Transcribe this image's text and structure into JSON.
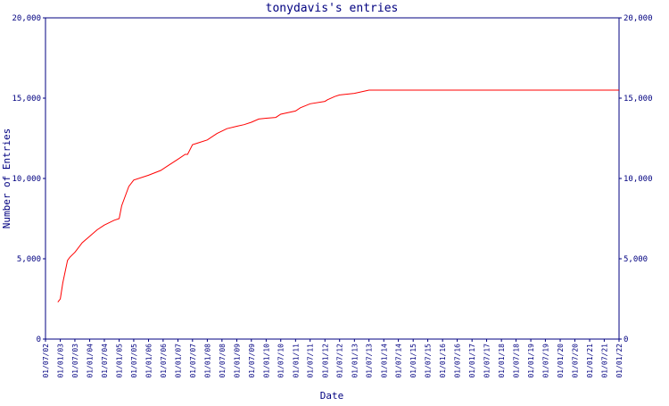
{
  "colors": {
    "axis": "#000080",
    "text": "#000080",
    "series": "#ff0000",
    "background": "#ffffff"
  },
  "chart_data": {
    "type": "line",
    "title": "tonydavis's entries",
    "xlabel": "Date",
    "ylabel": "Number of Entries",
    "ylim": [
      0,
      20000
    ],
    "yticks": [
      0,
      5000,
      10000,
      15000,
      20000
    ],
    "ytick_labels": [
      "0",
      "5,000",
      "10,000",
      "15,000",
      "20,000"
    ],
    "xlim": [
      "2002-07-01",
      "2022-01-01"
    ],
    "x_tick_dates": [
      "2002-07-01",
      "2003-01-01",
      "2003-07-01",
      "2004-01-01",
      "2004-07-01",
      "2005-01-01",
      "2005-07-01",
      "2006-01-01",
      "2006-07-01",
      "2007-01-01",
      "2007-07-01",
      "2008-01-01",
      "2008-07-01",
      "2009-01-01",
      "2009-07-01",
      "2010-01-01",
      "2010-07-01",
      "2011-01-01",
      "2011-07-01",
      "2012-01-01",
      "2012-07-01",
      "2013-01-01",
      "2013-07-01",
      "2014-01-01",
      "2014-07-01",
      "2015-01-01",
      "2015-07-01",
      "2016-01-01",
      "2016-07-01",
      "2017-01-01",
      "2017-07-01",
      "2018-01-01",
      "2018-07-01",
      "2019-01-01",
      "2019-07-01",
      "2020-01-01",
      "2020-07-01",
      "2021-01-01",
      "2021-07-01",
      "2022-01-01"
    ],
    "x_tick_labels": [
      "01/07/02",
      "01/01/03",
      "01/07/03",
      "01/01/04",
      "01/07/04",
      "01/01/05",
      "01/07/05",
      "01/01/06",
      "01/07/06",
      "01/01/07",
      "01/07/07",
      "01/01/08",
      "01/07/08",
      "01/01/09",
      "01/07/09",
      "01/01/10",
      "01/07/10",
      "01/01/11",
      "01/07/11",
      "01/01/12",
      "01/07/12",
      "01/01/13",
      "01/07/13",
      "01/01/14",
      "01/07/14",
      "01/01/15",
      "01/07/15",
      "01/01/16",
      "01/07/16",
      "01/01/17",
      "01/07/17",
      "01/01/18",
      "01/07/18",
      "01/01/19",
      "01/07/19",
      "01/01/20",
      "01/07/20",
      "01/01/21",
      "01/07/21",
      "01/01/22"
    ],
    "grid": false,
    "series": [
      {
        "x": [
          "2002-12-01",
          "2003-01-01",
          "2003-02-01",
          "2003-04-01",
          "2003-05-01",
          "2003-07-01",
          "2003-08-01",
          "2003-10-01",
          "2004-01-01",
          "2004-04-01",
          "2004-07-01",
          "2004-11-01",
          "2005-01-01",
          "2005-02-01",
          "2005-05-01",
          "2005-07-01",
          "2006-01-01",
          "2006-06-01",
          "2006-09-01",
          "2007-01-01",
          "2007-04-01",
          "2007-05-01",
          "2007-07-01",
          "2007-09-01",
          "2008-01-01",
          "2008-05-01",
          "2008-09-01",
          "2009-01-01",
          "2009-04-01",
          "2009-07-01",
          "2009-10-01",
          "2010-01-01",
          "2010-05-01",
          "2010-07-01",
          "2011-01-01",
          "2011-03-01",
          "2011-07-01",
          "2012-01-01",
          "2012-02-01",
          "2012-05-01",
          "2012-07-01",
          "2013-01-01",
          "2013-07-01",
          "2014-01-01",
          "2015-01-01",
          "2016-01-01",
          "2017-01-01",
          "2018-01-01",
          "2019-01-01",
          "2020-01-01",
          "2021-01-01",
          "2022-01-01"
        ],
        "y": [
          2300,
          2500,
          3500,
          4900,
          5100,
          5400,
          5600,
          6000,
          6400,
          6800,
          7100,
          7400,
          7500,
          8300,
          9500,
          9900,
          10200,
          10500,
          10800,
          11200,
          11500,
          11500,
          12100,
          12200,
          12400,
          12800,
          13100,
          13250,
          13350,
          13500,
          13700,
          13750,
          13800,
          14000,
          14200,
          14400,
          14650,
          14800,
          14900,
          15100,
          15200,
          15300,
          15500,
          15500,
          15500,
          15500,
          15500,
          15500,
          15500,
          15500,
          15500,
          15500
        ]
      }
    ]
  }
}
